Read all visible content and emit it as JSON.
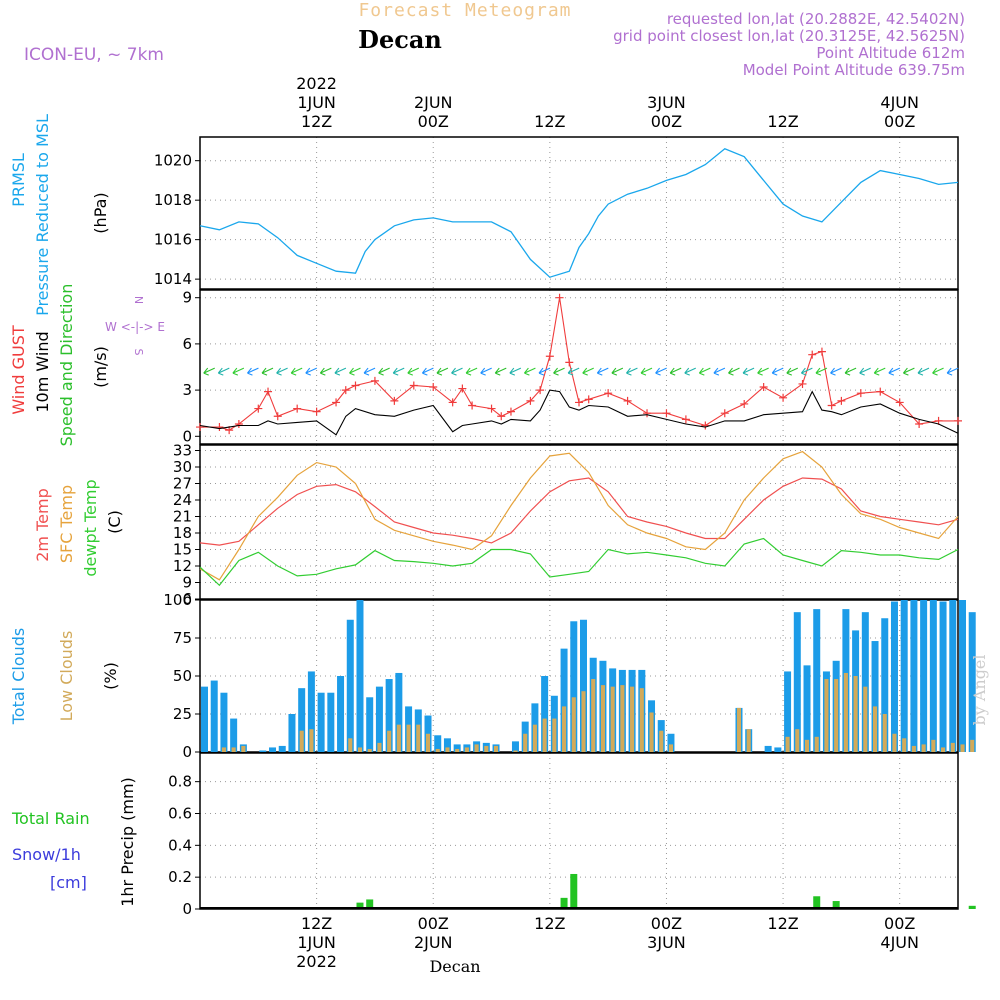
{
  "header": {
    "title": "Forecast Meteogram",
    "location": "Decan",
    "model": "ICON-EU, ~ 7km",
    "requested": "requested lon,lat (20.2882E, 42.5402N)",
    "gridpoint": "grid point closest lon,lat (20.3125E, 42.5625N)",
    "point_alt": "Point Altitude 612m",
    "model_alt": "Model Point Altitude 639.75m",
    "footer": "Decan",
    "watermark": "by Angel"
  },
  "time_axis": {
    "top_labels": [
      {
        "lines": [
          "2022",
          "1JUN",
          "12Z"
        ],
        "h": 12
      },
      {
        "lines": [
          "2JUN",
          "00Z"
        ],
        "h": 24
      },
      {
        "lines": [
          "12Z"
        ],
        "h": 36
      },
      {
        "lines": [
          "3JUN",
          "00Z"
        ],
        "h": 48
      },
      {
        "lines": [
          "12Z"
        ],
        "h": 60
      },
      {
        "lines": [
          "4JUN",
          "00Z"
        ],
        "h": 72
      }
    ],
    "bottom_labels": [
      {
        "lines": [
          "12Z",
          "1JUN",
          "2022"
        ],
        "h": 12
      },
      {
        "lines": [
          "00Z",
          "2JUN"
        ],
        "h": 24
      },
      {
        "lines": [
          "12Z"
        ],
        "h": 36
      },
      {
        "lines": [
          "00Z",
          "3JUN"
        ],
        "h": 48
      },
      {
        "lines": [
          "12Z"
        ],
        "h": 60
      },
      {
        "lines": [
          "00Z",
          "4JUN"
        ],
        "h": 72
      }
    ]
  },
  "panel_labels": {
    "pressure": [
      "PRMSL",
      "Pressure Reduced to MSL",
      "(hPa)"
    ],
    "wind": [
      "Wind GUST",
      "10m Wind",
      "Speed and Direction",
      "(m/s)"
    ],
    "compass": [
      "N",
      "W <-|-> E",
      "S"
    ],
    "temp": [
      "2m Temp",
      "SFC Temp",
      "dewpt Temp",
      "(C)"
    ],
    "clouds": [
      "Total Clouds",
      "Low Clouds",
      "(%)"
    ],
    "precip": [
      "Total  Rain",
      "Snow/1h",
      "[cm]",
      "1hr Precip (mm)"
    ]
  },
  "colors": {
    "pressure": "#1aa7ec",
    "gust": "#f03c3c",
    "wind": "#000000",
    "windlabel": "#2bbf2b",
    "t2m": "#f05050",
    "sfc": "#e6a33c",
    "dew": "#32cd32",
    "total_clouds": "#1c9ce8",
    "low_clouds": "#d2aa5a",
    "rain": "#22c322",
    "snow": "#3c3cdc",
    "header": "#b070d0",
    "title": "#f0c890"
  },
  "chart_data": [
    {
      "type": "line",
      "name": "pressure",
      "ylim": [
        1013.5,
        1021.2
      ],
      "yticks": [
        1014,
        1016,
        1018,
        1020
      ],
      "x": [
        0,
        2,
        4,
        6,
        8,
        10,
        12,
        14,
        16,
        17,
        18,
        20,
        22,
        24,
        26,
        28,
        30,
        32,
        34,
        36,
        38,
        39,
        40,
        41,
        42,
        44,
        46,
        48,
        50,
        52,
        54,
        56,
        58,
        60,
        62,
        64,
        66,
        68,
        70,
        72,
        74,
        76,
        78
      ],
      "series": [
        {
          "name": "PRMSL",
          "values": [
            1016.7,
            1016.5,
            1016.9,
            1016.8,
            1016.1,
            1015.2,
            1014.8,
            1014.4,
            1014.3,
            1015.4,
            1016.0,
            1016.7,
            1017.0,
            1017.1,
            1016.9,
            1016.9,
            1016.9,
            1016.4,
            1015.0,
            1014.1,
            1014.4,
            1015.6,
            1016.3,
            1017.2,
            1017.8,
            1018.3,
            1018.6,
            1019.0,
            1019.3,
            1019.8,
            1020.6,
            1020.2,
            1019.0,
            1017.8,
            1017.2,
            1016.9,
            1017.9,
            1018.9,
            1019.5,
            1019.3,
            1019.1,
            1018.8,
            1018.9
          ]
        }
      ]
    },
    {
      "type": "line",
      "name": "wind",
      "ylim": [
        -0.5,
        9.5
      ],
      "yticks": [
        0,
        3,
        6,
        9
      ],
      "x": [
        0,
        2,
        3,
        4,
        6,
        7,
        8,
        10,
        12,
        14,
        15,
        16,
        18,
        20,
        22,
        24,
        26,
        27,
        28,
        30,
        31,
        32,
        34,
        35,
        36,
        37,
        38,
        39,
        40,
        42,
        44,
        46,
        48,
        50,
        52,
        54,
        56,
        58,
        60,
        62,
        63,
        64,
        65,
        66,
        68,
        70,
        72,
        74,
        76,
        78
      ],
      "series": [
        {
          "name": "Wind GUST",
          "values": [
            0.6,
            0.6,
            0.4,
            0.8,
            1.8,
            2.9,
            1.3,
            1.8,
            1.6,
            2.2,
            3.0,
            3.3,
            3.6,
            2.3,
            3.3,
            3.2,
            2.2,
            3.1,
            2.0,
            1.8,
            1.3,
            1.6,
            2.3,
            3.0,
            5.2,
            9.0,
            4.8,
            2.2,
            2.4,
            2.8,
            2.3,
            1.5,
            1.5,
            1.1,
            0.7,
            1.5,
            2.1,
            3.2,
            2.5,
            3.4,
            5.3,
            5.5,
            2.0,
            2.3,
            2.8,
            2.9,
            2.2,
            0.8,
            1.0,
            1.0
          ]
        },
        {
          "name": "10m Wind",
          "values": [
            0.7,
            0.5,
            0.6,
            0.7,
            0.7,
            1.0,
            0.8,
            0.9,
            1.0,
            0.1,
            1.3,
            1.8,
            1.4,
            1.3,
            1.7,
            2.0,
            0.3,
            0.7,
            0.8,
            1.0,
            0.8,
            1.1,
            1.0,
            1.7,
            3.0,
            2.9,
            1.9,
            1.7,
            2.0,
            1.9,
            1.3,
            1.4,
            1.1,
            0.8,
            0.6,
            1.0,
            1.0,
            1.4,
            1.5,
            1.6,
            2.9,
            1.7,
            1.6,
            1.4,
            1.9,
            2.1,
            1.5,
            1.1,
            0.8,
            0.2
          ]
        }
      ]
    },
    {
      "type": "line",
      "name": "temperature",
      "ylim": [
        6,
        34
      ],
      "yticks": [
        6,
        9,
        12,
        15,
        18,
        21,
        24,
        27,
        30,
        33
      ],
      "x": [
        0,
        2,
        4,
        6,
        8,
        10,
        12,
        14,
        16,
        18,
        20,
        22,
        24,
        26,
        28,
        30,
        32,
        34,
        36,
        38,
        40,
        42,
        44,
        46,
        48,
        50,
        52,
        54,
        56,
        58,
        60,
        62,
        64,
        66,
        68,
        70,
        72,
        74,
        76,
        78
      ],
      "series": [
        {
          "name": "2m Temp",
          "values": [
            16.2,
            15.8,
            16.5,
            19.5,
            22.5,
            25.0,
            26.5,
            26.8,
            25.5,
            22.8,
            20.0,
            19.0,
            18.0,
            17.6,
            17.0,
            16.2,
            18.0,
            22.0,
            25.5,
            27.5,
            28.0,
            25.5,
            21.0,
            20.0,
            19.2,
            18.0,
            17.0,
            17.0,
            20.5,
            24.0,
            26.5,
            28.0,
            27.8,
            26.0,
            22.0,
            21.0,
            20.5,
            20.0,
            19.5,
            20.5
          ]
        },
        {
          "name": "SFC Temp",
          "values": [
            11.5,
            9.5,
            15.0,
            21.0,
            24.5,
            28.5,
            30.8,
            30.0,
            27.0,
            20.5,
            18.5,
            17.5,
            16.5,
            15.8,
            15.0,
            17.5,
            23.0,
            28.0,
            32.0,
            32.5,
            29.0,
            23.0,
            19.5,
            18.0,
            17.0,
            15.5,
            15.0,
            18.0,
            24.0,
            28.0,
            31.5,
            32.8,
            30.0,
            25.0,
            21.5,
            20.5,
            19.0,
            18.0,
            17.0,
            21.0
          ]
        },
        {
          "name": "dewpt Temp",
          "values": [
            11.8,
            8.5,
            13.0,
            14.5,
            12.0,
            10.2,
            10.5,
            11.5,
            12.2,
            14.8,
            13.0,
            12.8,
            12.5,
            12.0,
            12.5,
            15.0,
            15.0,
            14.2,
            10.0,
            10.5,
            11.0,
            15.0,
            14.2,
            14.5,
            14.0,
            13.5,
            12.5,
            12.0,
            16.0,
            17.0,
            14.0,
            13.0,
            12.0,
            14.8,
            14.5,
            14.0,
            14.0,
            13.5,
            13.2,
            15.0
          ]
        }
      ]
    },
    {
      "type": "bar",
      "name": "clouds",
      "ylim": [
        0,
        100
      ],
      "yticks": [
        0,
        25,
        50,
        75,
        100
      ],
      "x": [
        0,
        1,
        2,
        3,
        4,
        5,
        6,
        7,
        8,
        9,
        10,
        11,
        12,
        13,
        14,
        15,
        16,
        17,
        18,
        19,
        20,
        21,
        22,
        23,
        24,
        25,
        26,
        27,
        28,
        29,
        30,
        31,
        32,
        33,
        34,
        35,
        36,
        37,
        38,
        39,
        40,
        41,
        42,
        43,
        44,
        45,
        46,
        47,
        48,
        49,
        50,
        51,
        52,
        53,
        54,
        55,
        56,
        57,
        58,
        59,
        60,
        61,
        62,
        63,
        64,
        65,
        66,
        67,
        68,
        69,
        70,
        71,
        72,
        73,
        74,
        75,
        76,
        77,
        78,
        79
      ],
      "series": [
        {
          "name": "Total Clouds",
          "values": [
            43,
            47,
            39,
            22,
            5,
            0,
            1,
            3,
            4,
            25,
            42,
            53,
            39,
            39,
            50,
            87,
            100,
            36,
            43,
            48,
            52,
            30,
            28,
            24,
            11,
            9,
            5,
            5,
            7,
            6,
            5,
            0,
            7,
            20,
            32,
            50,
            37,
            68,
            86,
            87,
            62,
            60,
            55,
            54,
            54,
            54,
            34,
            21,
            12,
            0,
            0,
            0,
            0,
            0,
            0,
            29,
            15,
            0,
            4,
            3,
            53,
            92,
            57,
            94,
            53,
            60,
            94,
            80,
            92,
            73,
            88,
            99,
            100,
            100,
            100,
            100,
            99,
            100,
            100,
            92
          ]
        },
        {
          "name": "Low Clouds",
          "values": [
            0,
            0,
            3,
            3,
            4,
            0,
            0,
            0,
            0,
            0,
            14,
            15,
            0,
            0,
            0,
            9,
            3,
            2,
            6,
            14,
            18,
            18,
            18,
            12,
            2,
            3,
            2,
            3,
            5,
            4,
            4,
            0,
            1,
            12,
            18,
            22,
            22,
            30,
            36,
            40,
            48,
            44,
            43,
            44,
            43,
            42,
            26,
            14,
            5,
            0,
            0,
            0,
            0,
            0,
            0,
            29,
            15,
            0,
            0,
            0,
            10,
            15,
            8,
            10,
            48,
            48,
            52,
            50,
            43,
            30,
            25,
            12,
            9,
            4,
            5,
            8,
            3,
            6,
            5,
            8
          ]
        }
      ]
    },
    {
      "type": "bar",
      "name": "precip",
      "ylim": [
        0,
        0.98
      ],
      "yticks": [
        0,
        0.2,
        0.4,
        0.6,
        0.8
      ],
      "x": [
        16,
        17,
        37,
        38,
        63,
        65,
        77,
        79
      ],
      "series": [
        {
          "name": "Total Rain",
          "values": [
            0.04,
            0.06,
            0.07,
            0.22,
            0.08,
            0.05,
            0.01,
            0.02
          ]
        }
      ]
    }
  ]
}
